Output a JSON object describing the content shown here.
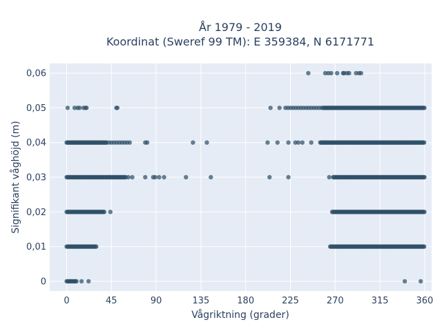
{
  "chart_data": {
    "type": "scatter",
    "title_line1": "År 1979 - 2019",
    "title_line2": "Koordinat (Sweref 99 TM): E 359384, N 6171771",
    "xlabel": "Vågriktning (grader)",
    "ylabel": "Signifikant våghöjd (m)",
    "xlim": [
      -17,
      367
    ],
    "ylim": [
      -0.0028,
      0.0628
    ],
    "xticks": [
      0,
      45,
      90,
      135,
      180,
      225,
      270,
      315,
      360
    ],
    "xtick_labels": [
      "0",
      "45",
      "90",
      "135",
      "180",
      "225",
      "270",
      "315",
      "360"
    ],
    "yticks": [
      0,
      0.01,
      0.02,
      0.03,
      0.04,
      0.05,
      0.06
    ],
    "ytick_labels": [
      "0",
      "0,01",
      "0,02",
      "0,03",
      "0,04",
      "0,05",
      "0,06"
    ],
    "grid": true,
    "marker_color": "#2f5168",
    "plot_background": "#e5ecf6",
    "bands": [
      {
        "y": 0.0,
        "from": 0,
        "to": 10,
        "dense": true
      },
      {
        "y": 0.01,
        "from": 0,
        "to": 30,
        "dense": true
      },
      {
        "y": 0.01,
        "from": 265,
        "to": 360,
        "dense": true
      },
      {
        "y": 0.02,
        "from": 0,
        "to": 38,
        "dense": true
      },
      {
        "y": 0.02,
        "from": 267,
        "to": 360,
        "dense": true
      },
      {
        "y": 0.03,
        "from": 0,
        "to": 60,
        "dense": true
      },
      {
        "y": 0.03,
        "from": 268,
        "to": 360,
        "dense": true
      },
      {
        "y": 0.04,
        "from": 0,
        "to": 40,
        "dense": true
      },
      {
        "y": 0.04,
        "from": 40,
        "to": 65,
        "dense": false
      },
      {
        "y": 0.04,
        "from": 255,
        "to": 360,
        "dense": true
      },
      {
        "y": 0.05,
        "from": 258,
        "to": 360,
        "dense": true
      },
      {
        "y": 0.05,
        "from": 220,
        "to": 258,
        "dense": false
      }
    ],
    "points": [
      [
        15,
        0
      ],
      [
        22,
        0
      ],
      [
        340,
        0
      ],
      [
        356,
        0
      ],
      [
        1,
        0.05
      ],
      [
        8,
        0.05
      ],
      [
        11,
        0.05
      ],
      [
        13,
        0.05
      ],
      [
        17,
        0.05
      ],
      [
        19,
        0.05
      ],
      [
        20,
        0.05
      ],
      [
        50,
        0.05
      ],
      [
        51,
        0.05
      ],
      [
        205,
        0.05
      ],
      [
        214,
        0.05
      ],
      [
        79,
        0.04
      ],
      [
        81,
        0.04
      ],
      [
        127,
        0.04
      ],
      [
        141,
        0.04
      ],
      [
        202,
        0.04
      ],
      [
        212,
        0.04
      ],
      [
        223,
        0.04
      ],
      [
        230,
        0.04
      ],
      [
        233,
        0.04
      ],
      [
        237,
        0.04
      ],
      [
        246,
        0.04
      ],
      [
        44,
        0.02
      ],
      [
        62,
        0.03
      ],
      [
        66,
        0.03
      ],
      [
        79,
        0.03
      ],
      [
        87,
        0.03
      ],
      [
        89,
        0.03
      ],
      [
        93,
        0.03
      ],
      [
        98,
        0.03
      ],
      [
        120,
        0.03
      ],
      [
        145,
        0.03
      ],
      [
        204,
        0.03
      ],
      [
        223,
        0.03
      ],
      [
        264,
        0.03
      ],
      [
        243,
        0.06
      ],
      [
        260,
        0.06
      ],
      [
        263,
        0.06
      ],
      [
        266,
        0.06
      ],
      [
        272,
        0.06
      ],
      [
        278,
        0.06
      ],
      [
        279,
        0.06
      ],
      [
        282,
        0.06
      ],
      [
        284,
        0.06
      ],
      [
        291,
        0.06
      ],
      [
        294,
        0.06
      ],
      [
        296,
        0.06
      ]
    ]
  }
}
